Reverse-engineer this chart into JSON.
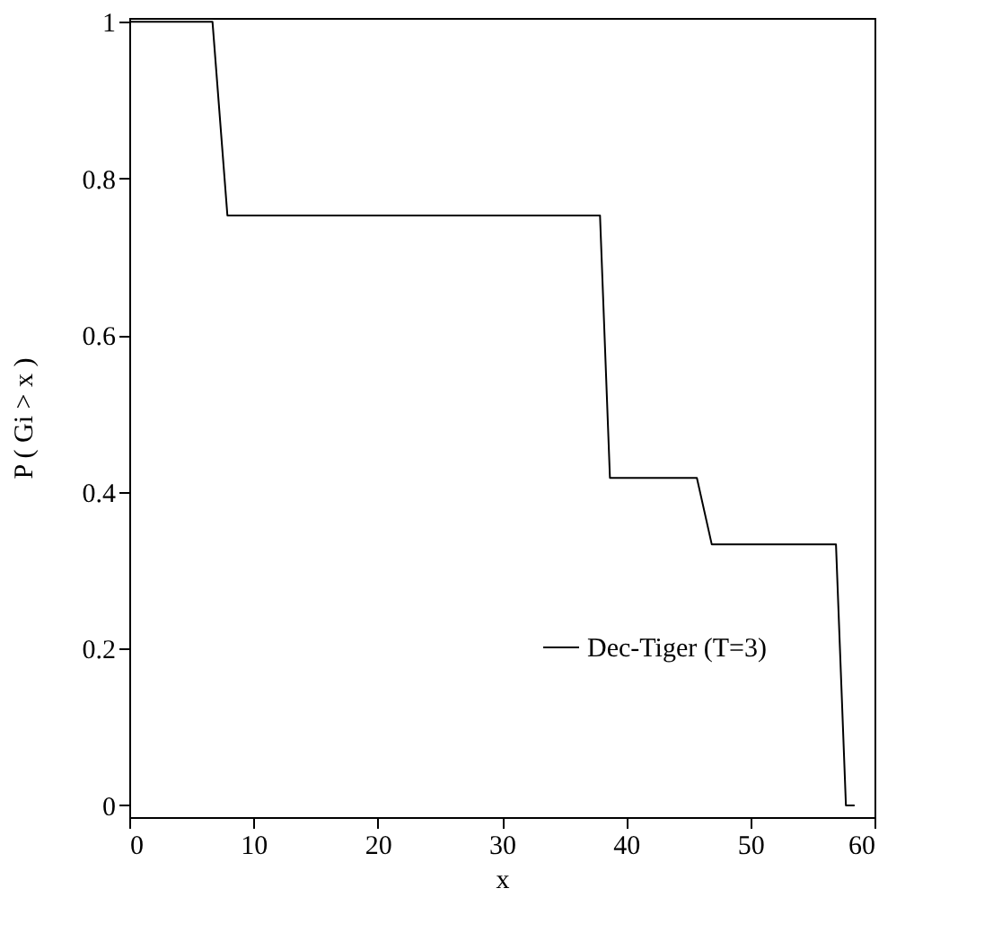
{
  "chart_data": {
    "type": "line",
    "xlabel": "x",
    "ylabel": "P ( Gi > x )",
    "x": [
      0,
      6.7,
      7.9,
      37.9,
      38.7,
      45.7,
      46.9,
      56.9,
      57.7,
      58.4
    ],
    "series": [
      {
        "name": "Dec-Tiger (T=3)",
        "color": "#000000",
        "values": [
          1,
          1,
          0.753,
          0.753,
          0.418,
          0.418,
          0.333,
          0.333,
          0,
          0
        ]
      }
    ],
    "xlim": [
      0,
      60
    ],
    "xticks": [
      0,
      10,
      20,
      30,
      40,
      50,
      60
    ],
    "ylim": [
      -0.015,
      1.005
    ],
    "yticks": [
      0,
      0.2,
      0.4,
      0.6,
      0.8,
      1
    ],
    "grid": false,
    "legend": "bottom right",
    "marker": "none",
    "line_style": "solid"
  }
}
